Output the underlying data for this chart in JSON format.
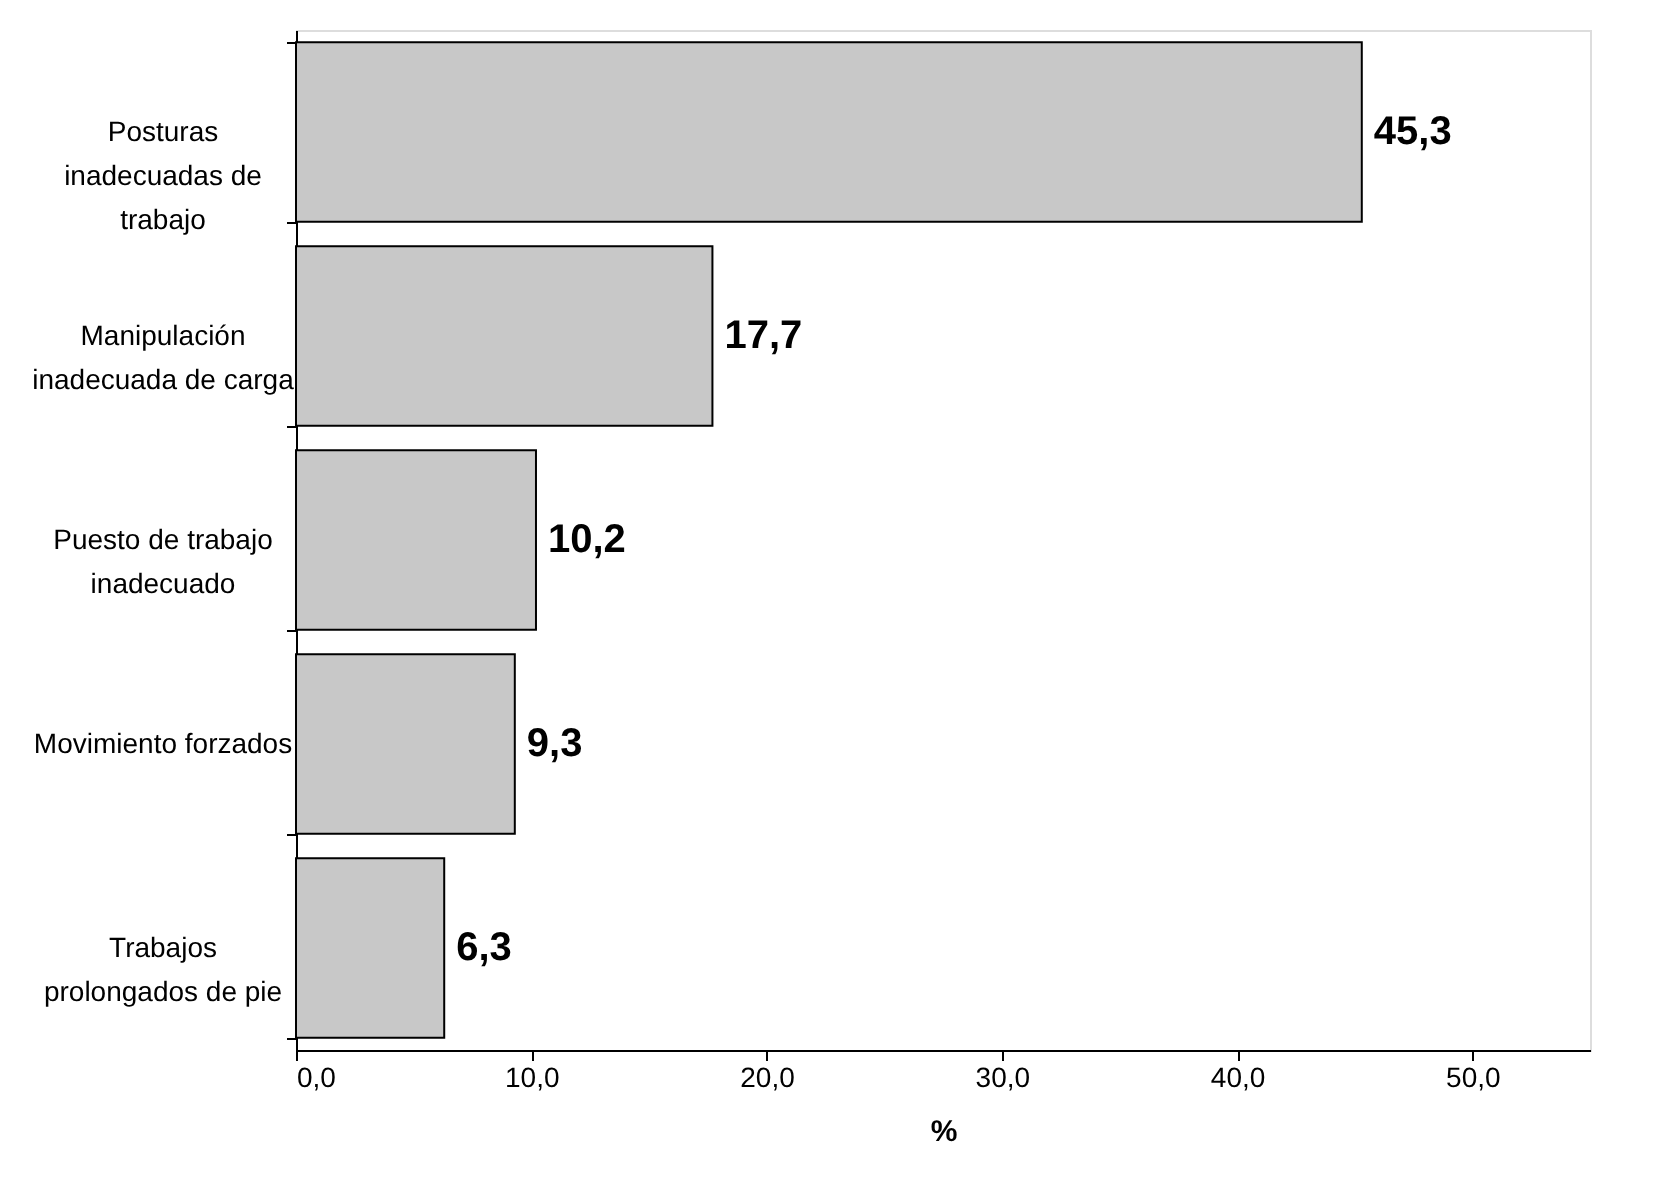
{
  "chart_data": {
    "type": "bar",
    "orientation": "horizontal",
    "xlabel": "%",
    "categories": [
      "Posturas inadecuadas de trabajo",
      "Manipulación inadecuada de carga",
      "Puesto de trabajo inadecuado",
      "Movimiento forzados",
      "Trabajos prolongados de pie"
    ],
    "values": [
      45.3,
      17.7,
      10.2,
      9.3,
      6.3
    ],
    "value_labels": [
      "45,3",
      "17,7",
      "10,2",
      "9,3",
      "6,3"
    ],
    "color": "#c8c8c8",
    "xlim": [
      0,
      55
    ],
    "xticks": [
      {
        "value": 0,
        "label": "0,0"
      },
      {
        "value": 10,
        "label": "10,0"
      },
      {
        "value": 20,
        "label": "20,0"
      },
      {
        "value": 30,
        "label": "30,0"
      },
      {
        "value": 40,
        "label": "40,0"
      },
      {
        "value": 50,
        "label": "50,0"
      }
    ],
    "grid": false
  }
}
